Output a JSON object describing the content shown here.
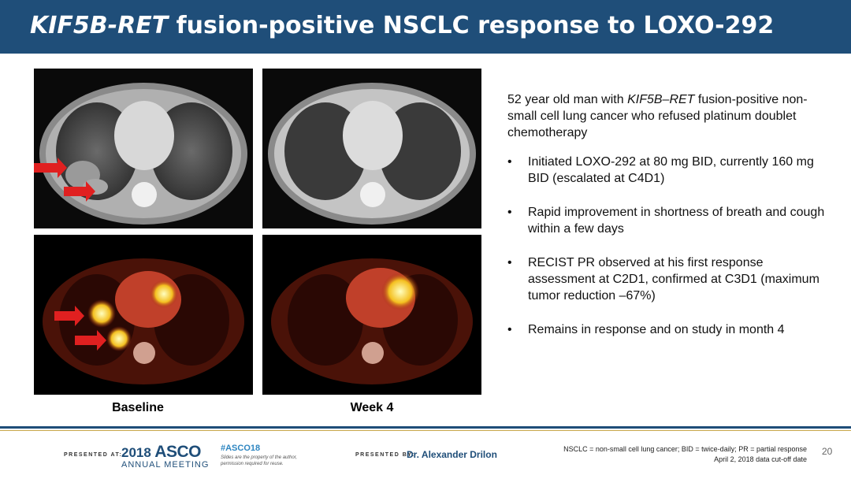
{
  "slide": {
    "title_italic": "KIF5B-RET",
    "title_rest": " fusion-positive NSCLC response to LOXO-292"
  },
  "images": {
    "caption_baseline": "Baseline",
    "caption_week4": "Week 4"
  },
  "case_summary": {
    "intro_part1": "52 year old man with ",
    "intro_italic": "KIF5B–RET",
    "intro_part2": " fusion-positive non-small cell lung cancer who refused platinum doublet chemotherapy",
    "bullets": [
      "Initiated LOXO-292 at 80 mg BID, currently 160 mg BID (escalated at C4D1)",
      "Rapid improvement in shortness of breath and cough within a few days",
      "RECIST PR observed at his first response assessment at C2D1, confirmed at C3D1 (maximum tumor reduction –67%)",
      "Remains in response and on study in month 4"
    ]
  },
  "footer": {
    "presented_at": "PRESENTED AT:",
    "meeting_year": "2018",
    "meeting_org": "ASCO",
    "meeting_name": "ANNUAL MEETING",
    "hashtag": "#ASCO18",
    "slide_note": "Slides are the property of the author, permission required for reuse.",
    "presented_by": "PRESENTED BY:",
    "presenter": "Dr. Alexander Drilon",
    "abbreviations": "NSCLC = non-small cell lung cancer; BID = twice-daily; PR = partial response",
    "data_cutoff": "April 2, 2018 data cut-off date",
    "page_number": "20"
  },
  "colors": {
    "title_bar": "#1f4e79",
    "arrow": "#e02020"
  }
}
